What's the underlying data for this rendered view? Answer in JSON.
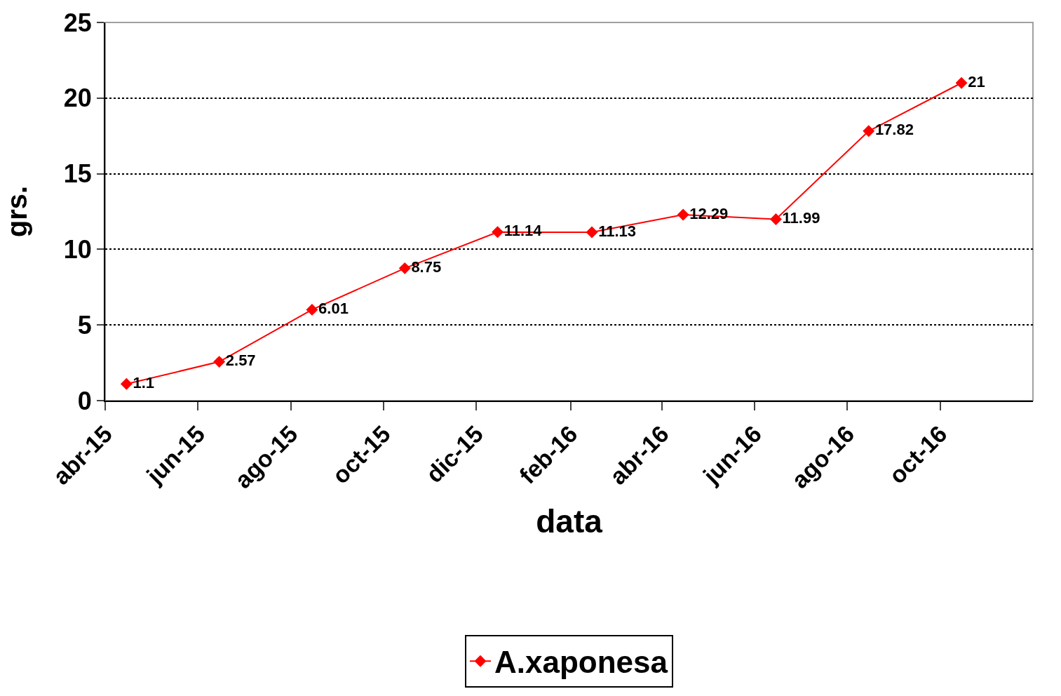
{
  "chart_data": {
    "type": "line",
    "xlabel": "data",
    "ylabel": "grs.",
    "x": [
      "2015-04-15",
      "2015-06-15",
      "2015-08-15",
      "2015-10-15",
      "2015-12-15",
      "2016-02-15",
      "2016-04-15",
      "2016-06-15",
      "2016-08-15",
      "2016-10-15"
    ],
    "series": [
      {
        "name": "A.xaponesa",
        "color": "#ff0000",
        "values": [
          1.1,
          2.57,
          6.01,
          8.75,
          11.14,
          11.13,
          12.29,
          11.99,
          17.82,
          21
        ]
      }
    ],
    "xlim": [
      "2015-04-01",
      "2016-12-01"
    ],
    "xticks": [
      {
        "value": "2015-04-01",
        "label": "abr-15"
      },
      {
        "value": "2015-06-01",
        "label": "jun-15"
      },
      {
        "value": "2015-08-01",
        "label": "ago-15"
      },
      {
        "value": "2015-10-01",
        "label": "oct-15"
      },
      {
        "value": "2015-12-01",
        "label": "dic-15"
      },
      {
        "value": "2016-02-01",
        "label": "feb-16"
      },
      {
        "value": "2016-04-01",
        "label": "abr-16"
      },
      {
        "value": "2016-06-01",
        "label": "jun-16"
      },
      {
        "value": "2016-08-01",
        "label": "ago-16"
      },
      {
        "value": "2016-10-01",
        "label": "oct-16"
      }
    ],
    "ylim": [
      0,
      25
    ],
    "yticks": [
      0,
      5,
      10,
      15,
      20,
      25
    ],
    "grid": "y",
    "legend": "bottom",
    "marker": "diamond",
    "line_style": "solid",
    "data_labels": true
  }
}
